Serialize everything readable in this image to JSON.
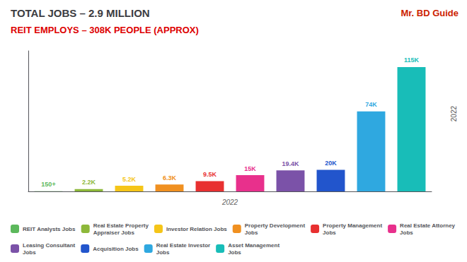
{
  "chart_data": {
    "type": "bar",
    "title": "TOTAL JOBS – 2.9 MILLION",
    "subtitle": "REIT EMPLOYS – 308K PEOPLE (APPROX)",
    "xlabel": "2022",
    "annotations": [
      "Mr. BD Guide",
      "2022"
    ],
    "categories": [
      "REIT Analysts Jobs",
      "Real Estate Property\nAppraiser Jobs",
      "Investor Relation Jobs",
      "Property Development\nJobs",
      "Property Management\nJobs",
      "Real Estate Attorney\nJobs",
      "Leasing Consultant\nJobs",
      "Acquisition Jobs",
      "Real Estate Investor\nJobs",
      "Asset Management\nJobs"
    ],
    "values": [
      0.15,
      2.2,
      5.2,
      6.3,
      9.5,
      15,
      19.4,
      20,
      74,
      115
    ],
    "value_labels": [
      "150+",
      "2.2K",
      "5.2K",
      "6.3K",
      "9.5K",
      "15K",
      "19.4K",
      "20K",
      "74K",
      "115K"
    ],
    "colors": [
      "#5cb85c",
      "#8db83a",
      "#f5c518",
      "#f09020",
      "#e83030",
      "#e8308c",
      "#7b52a8",
      "#2255cc",
      "#2fa8e0",
      "#18bdb8"
    ],
    "ylim": [
      0,
      130
    ],
    "data_labels": true,
    "tick_labels": false,
    "grid": false,
    "legend": "bottom"
  }
}
